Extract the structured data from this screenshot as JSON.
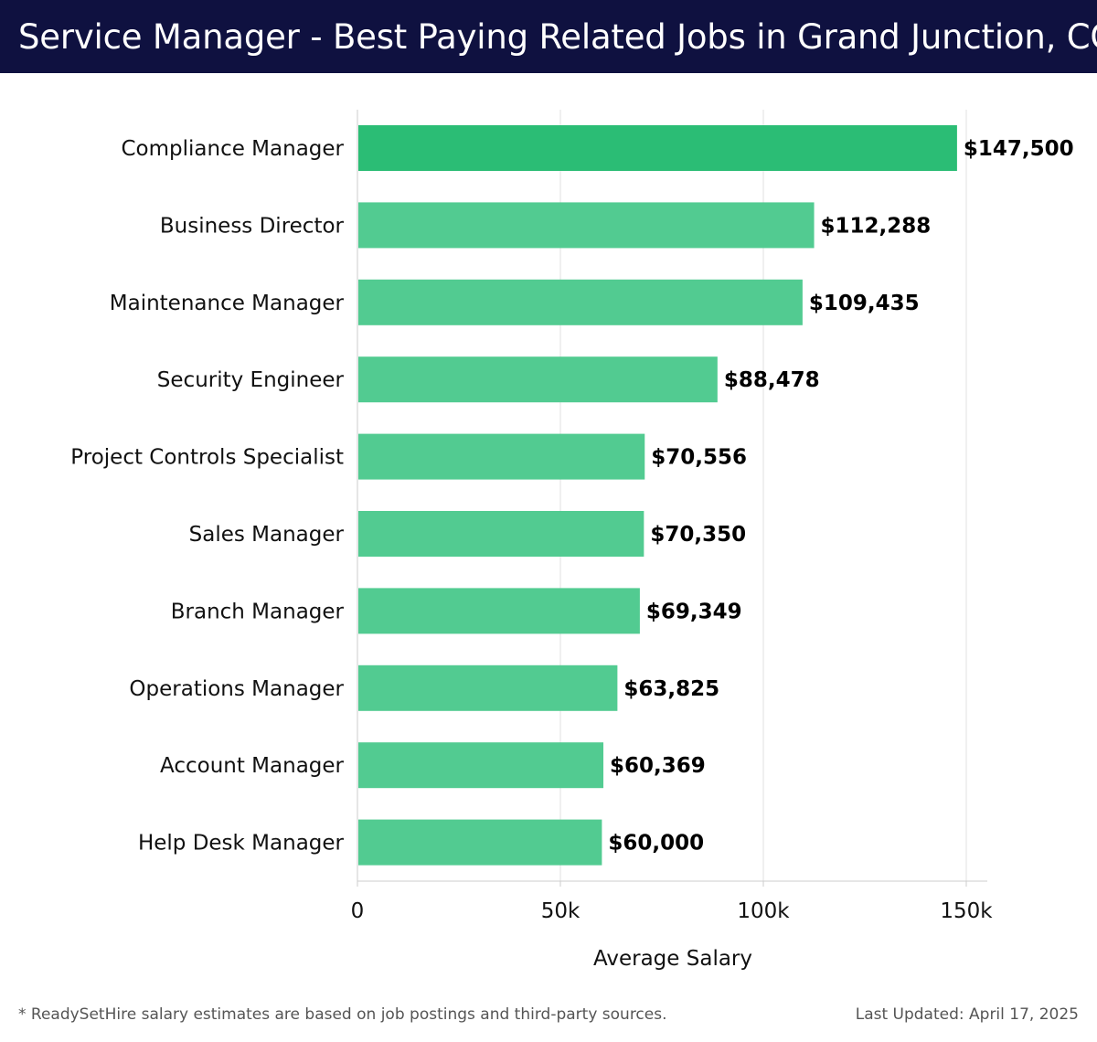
{
  "header": {
    "title": "Service Manager - Best Paying Related Jobs in Grand Junction, CO"
  },
  "chart_data": {
    "type": "bar",
    "orientation": "horizontal",
    "categories": [
      "Compliance Manager",
      "Business Director",
      "Maintenance Manager",
      "Security Engineer",
      "Project Controls Specialist",
      "Sales Manager",
      "Branch Manager",
      "Operations Manager",
      "Account Manager",
      "Help Desk Manager"
    ],
    "values": [
      147500,
      112288,
      109435,
      88478,
      70556,
      70350,
      69349,
      63825,
      60369,
      60000
    ],
    "value_labels": [
      "$147,500",
      "$112,288",
      "$109,435",
      "$88,478",
      "$70,556",
      "$70,350",
      "$69,349",
      "$63,825",
      "$60,369",
      "$60,000"
    ],
    "xlabel": "Average Salary",
    "ylabel": "",
    "xlim": [
      0,
      155000
    ],
    "xticks": [
      0,
      50000,
      100000,
      150000
    ],
    "xtick_labels": [
      "0",
      "50k",
      "100k",
      "150k"
    ],
    "grid": "vertical",
    "colors": {
      "bar_top": "#2bbd75",
      "bar": "#52cb91",
      "grid": "#e0e0e0",
      "axis": "#cccccc",
      "label": "#111111"
    }
  },
  "footer": {
    "note": "* ReadySetHire salary estimates are based on job postings and third-party sources.",
    "updated": "Last Updated: April 17, 2025"
  }
}
